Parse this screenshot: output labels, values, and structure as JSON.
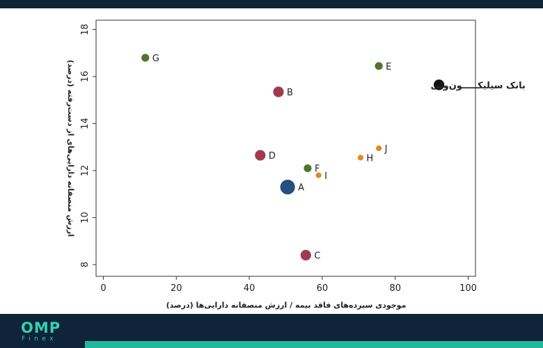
{
  "header": {},
  "chart_data": {
    "type": "scatter",
    "xlabel": "موجودی سپرده‌های فاقد بیمه / ارزش منصفانه دارایی‌ها (درصد)",
    "ylabel": "ارزش منصفانه دارایی‌های از دست‌رفته (درصد)",
    "xlim": [
      -2,
      102
    ],
    "ylim": [
      7.5,
      18.4
    ],
    "xticks": [
      0,
      20,
      40,
      60,
      80,
      100
    ],
    "yticks": [
      8,
      10,
      12,
      14,
      16,
      18
    ],
    "grid": false,
    "points": [
      {
        "label": "A",
        "x": 50.5,
        "y": 11.3,
        "size": 3,
        "color": "#24507e"
      },
      {
        "label": "B",
        "x": 48,
        "y": 15.35,
        "size": 2,
        "color": "#a23a4e"
      },
      {
        "label": "C",
        "x": 55.5,
        "y": 8.4,
        "size": 2,
        "color": "#a23a4e"
      },
      {
        "label": "D",
        "x": 43,
        "y": 12.65,
        "size": 2,
        "color": "#a23a4e"
      },
      {
        "label": "E",
        "x": 75.5,
        "y": 16.45,
        "size": 1.5,
        "color": "#517530"
      },
      {
        "label": "F",
        "x": 56,
        "y": 12.1,
        "size": 1.5,
        "color": "#517530"
      },
      {
        "label": "G",
        "x": 11.5,
        "y": 16.8,
        "size": 1.5,
        "color": "#517530"
      },
      {
        "label": "H",
        "x": 70.5,
        "y": 12.55,
        "size": 1,
        "color": "#e08a1e"
      },
      {
        "label": "I",
        "x": 59,
        "y": 11.8,
        "size": 1,
        "color": "#e08a1e"
      },
      {
        "label": "J",
        "x": 75.5,
        "y": 12.95,
        "size": 1,
        "color": "#e08a1e"
      },
      {
        "label": "بانک سیلیکـــــون‌ولی",
        "x": 92,
        "y": 15.65,
        "size": 2,
        "color": "#111111",
        "label_side": "left"
      }
    ]
  },
  "footer": {
    "logo_main": "OMP",
    "logo_sub": "Finex"
  }
}
